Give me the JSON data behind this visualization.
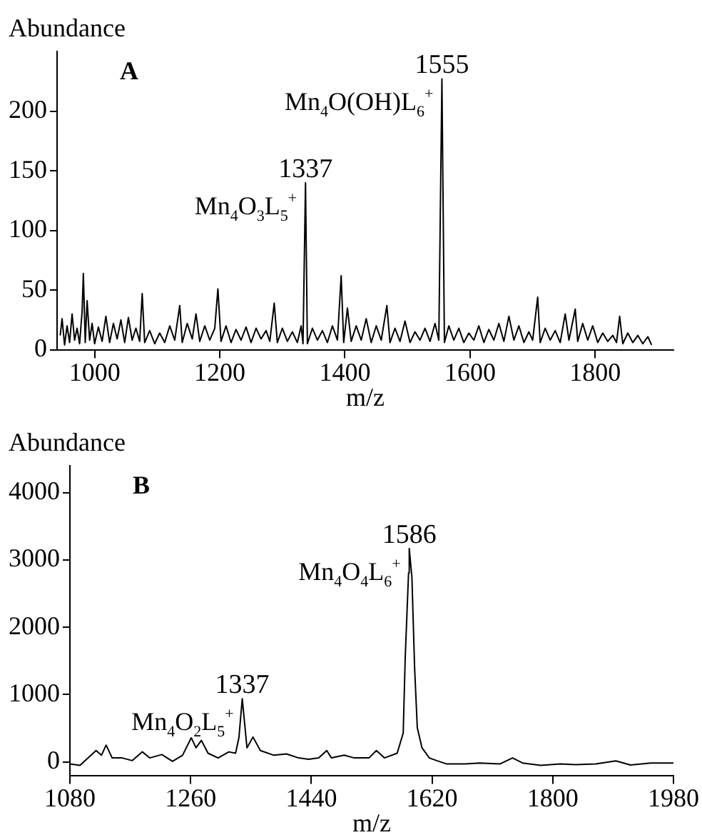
{
  "chart_data": [
    {
      "type": "line",
      "xlabel": "m/z",
      "ylabel": "Abundance",
      "xlim": [
        940,
        1925
      ],
      "xticks": [
        1000,
        1200,
        1400,
        1600,
        1800
      ],
      "ylim": [
        0,
        250
      ],
      "yticks": [
        0,
        50,
        100,
        150,
        200
      ],
      "grid": false,
      "legend": false,
      "marker": "none",
      "line_style": "solid",
      "annotations": [
        "A",
        {
          "text": "1337",
          "x": 1337,
          "y": 140
        },
        {
          "text": "Mn$_{4}$O$_{3}$L$_{5}$$^{+}$",
          "x": 1337,
          "y": 140
        },
        {
          "text": "1555",
          "x": 1555,
          "y": 227
        },
        {
          "text": "Mn$_{4}$O(OH)L$_{6}$$^{+}$",
          "x": 1555,
          "y": 227
        }
      ],
      "series": [
        {
          "color": "#000000",
          "x": [
            945,
            948,
            952,
            956,
            960,
            964,
            968,
            972,
            976,
            980,
            982,
            985,
            988,
            992,
            996,
            1000,
            1006,
            1012,
            1018,
            1024,
            1030,
            1036,
            1042,
            1048,
            1054,
            1060,
            1066,
            1072,
            1076,
            1080,
            1088,
            1096,
            1104,
            1112,
            1120,
            1128,
            1136,
            1140,
            1148,
            1156,
            1162,
            1168,
            1176,
            1184,
            1192,
            1197,
            1202,
            1210,
            1218,
            1226,
            1234,
            1242,
            1250,
            1258,
            1266,
            1274,
            1280,
            1287,
            1292,
            1300,
            1308,
            1316,
            1324,
            1330,
            1333,
            1337,
            1340,
            1348,
            1356,
            1364,
            1372,
            1380,
            1388,
            1394,
            1398,
            1404,
            1410,
            1418,
            1426,
            1434,
            1442,
            1450,
            1458,
            1467,
            1472,
            1480,
            1488,
            1496,
            1504,
            1512,
            1520,
            1528,
            1536,
            1544,
            1550,
            1555,
            1559,
            1566,
            1574,
            1582,
            1590,
            1598,
            1606,
            1614,
            1622,
            1630,
            1638,
            1646,
            1654,
            1662,
            1670,
            1678,
            1686,
            1694,
            1700,
            1708,
            1712,
            1720,
            1728,
            1736,
            1744,
            1752,
            1758,
            1768,
            1772,
            1780,
            1788,
            1796,
            1804,
            1812,
            1820,
            1828,
            1834,
            1839,
            1844,
            1852,
            1860,
            1868,
            1876,
            1884,
            1890
          ],
          "values": [
            12,
            26,
            4,
            20,
            6,
            30,
            8,
            18,
            5,
            32,
            64,
            6,
            41,
            8,
            22,
            5,
            19,
            7,
            28,
            6,
            22,
            9,
            25,
            6,
            27,
            8,
            18,
            7,
            47,
            6,
            16,
            5,
            14,
            6,
            20,
            8,
            37,
            6,
            22,
            9,
            30,
            7,
            20,
            8,
            18,
            51,
            7,
            20,
            6,
            17,
            8,
            19,
            6,
            18,
            9,
            16,
            7,
            39,
            6,
            18,
            7,
            15,
            6,
            20,
            5,
            140,
            5,
            18,
            8,
            16,
            6,
            20,
            8,
            62,
            6,
            35,
            7,
            20,
            8,
            26,
            6,
            20,
            8,
            37,
            6,
            18,
            7,
            24,
            6,
            15,
            8,
            18,
            7,
            22,
            8,
            227,
            6,
            20,
            8,
            18,
            6,
            14,
            8,
            20,
            6,
            17,
            8,
            22,
            7,
            28,
            8,
            20,
            6,
            15,
            8,
            44,
            6,
            18,
            8,
            16,
            6,
            30,
            8,
            34,
            7,
            22,
            8,
            20,
            6,
            14,
            7,
            12,
            6,
            28,
            5,
            14,
            6,
            12,
            5,
            11,
            4
          ]
        }
      ]
    },
    {
      "type": "line",
      "xlabel": "m/z",
      "ylabel": "Abundance",
      "xlim": [
        1080,
        1980
      ],
      "xticks": [
        1080,
        1260,
        1440,
        1620,
        1800,
        1980
      ],
      "ylim": [
        -200,
        4400
      ],
      "yticks": [
        0,
        1000,
        2000,
        3000,
        4000
      ],
      "grid": false,
      "legend": false,
      "marker": "none",
      "line_style": "solid",
      "annotations": [
        "B",
        {
          "text": "1337",
          "x": 1337,
          "y": 940
        },
        {
          "text": "Mn$_{4}$O$_{2}$L$_{5}$$^{+}$",
          "x": 1337,
          "y": 940
        },
        {
          "text": "1586",
          "x": 1586,
          "y": 3170
        },
        {
          "text": "Mn$_{4}$O$_{4}$L$_{6}$$^{+}$",
          "x": 1586,
          "y": 3170
        }
      ],
      "series": [
        {
          "color": "#000000",
          "x": [
            1080,
            1095,
            1119,
            1127,
            1134,
            1143,
            1158,
            1173,
            1188,
            1199,
            1217,
            1233,
            1248,
            1261,
            1268,
            1276,
            1286,
            1301,
            1317,
            1327,
            1332,
            1337,
            1344,
            1353,
            1364,
            1384,
            1403,
            1421,
            1436,
            1451,
            1463,
            1470,
            1489,
            1504,
            1526,
            1537,
            1549,
            1568,
            1577,
            1580,
            1585,
            1586,
            1590,
            1594,
            1598,
            1605,
            1616,
            1627,
            1642,
            1669,
            1691,
            1721,
            1740,
            1755,
            1782,
            1811,
            1834,
            1864,
            1894,
            1916,
            1946,
            1980
          ],
          "values": [
            -30,
            -50,
            170,
            100,
            250,
            60,
            60,
            20,
            150,
            60,
            110,
            10,
            100,
            360,
            210,
            320,
            130,
            60,
            150,
            130,
            360,
            940,
            210,
            370,
            170,
            100,
            120,
            60,
            40,
            60,
            170,
            60,
            100,
            60,
            60,
            170,
            60,
            130,
            430,
            1550,
            2810,
            3170,
            2740,
            1400,
            510,
            210,
            60,
            20,
            -30,
            -30,
            -15,
            -30,
            60,
            -15,
            -50,
            -30,
            -40,
            -30,
            15,
            -45,
            -15,
            -15
          ]
        }
      ]
    }
  ]
}
